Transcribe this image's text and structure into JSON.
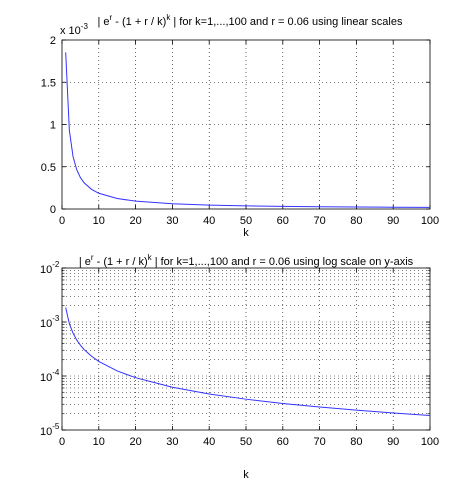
{
  "chart_data": [
    {
      "type": "line",
      "title_parts": [
        "| e",
        "r",
        " - (1 + r / k)",
        "k",
        " | for k=1,...,100 and r = 0.06 using linear scales"
      ],
      "xlabel": "k",
      "ylabel": "",
      "y_multiplier_base": "x 10",
      "y_multiplier_exp": "-3",
      "xlim": [
        0,
        100
      ],
      "ylim": [
        0,
        2
      ],
      "yscale": "linear",
      "xticks": [
        "0",
        "10",
        "20",
        "30",
        "40",
        "50",
        "60",
        "70",
        "80",
        "90",
        "100"
      ],
      "yticks": [
        "0",
        "0.5",
        "1",
        "1.5",
        "2"
      ],
      "grid": "dotted",
      "series_color": "#3333ff",
      "series": [
        {
          "x": [
            1,
            2,
            3,
            4,
            5,
            6,
            8,
            10,
            15,
            20,
            30,
            40,
            50,
            60,
            70,
            80,
            90,
            100
          ],
          "y": [
            0.001854,
            0.000929,
            0.00062,
            0.000465,
            0.000372,
            0.00031,
            0.000233,
            0.000186,
            0.000124,
            9.3e-05,
            6.2e-05,
            4.65e-05,
            3.72e-05,
            3.1e-05,
            2.66e-05,
            2.33e-05,
            2.07e-05,
            1.86e-05
          ]
        }
      ]
    },
    {
      "type": "line",
      "title_parts": [
        "| e",
        "r",
        " - (1 + r / k)",
        "k",
        " | for k=1,...,100 and r = 0.06 using log scale on y-axis"
      ],
      "xlabel": "k",
      "ylabel": "",
      "xlim": [
        0,
        100
      ],
      "ylim": [
        1e-05,
        0.01
      ],
      "yscale": "log",
      "xticks": [
        "0",
        "10",
        "20",
        "30",
        "40",
        "50",
        "60",
        "70",
        "80",
        "90",
        "100"
      ],
      "yticks": [
        {
          "base": "10",
          "exp": "-2"
        },
        {
          "base": "10",
          "exp": "-3"
        },
        {
          "base": "10",
          "exp": "-4"
        },
        {
          "base": "10",
          "exp": "-5"
        }
      ],
      "grid": "dotted",
      "series_color": "#3333ff",
      "series": [
        {
          "x": [
            1,
            2,
            3,
            4,
            5,
            6,
            8,
            10,
            15,
            20,
            30,
            40,
            50,
            60,
            70,
            80,
            90,
            100
          ],
          "y": [
            0.001854,
            0.000929,
            0.00062,
            0.000465,
            0.000372,
            0.00031,
            0.000233,
            0.000186,
            0.000124,
            9.3e-05,
            6.2e-05,
            4.65e-05,
            3.72e-05,
            3.1e-05,
            2.66e-05,
            2.33e-05,
            2.07e-05,
            1.86e-05
          ]
        }
      ]
    }
  ]
}
